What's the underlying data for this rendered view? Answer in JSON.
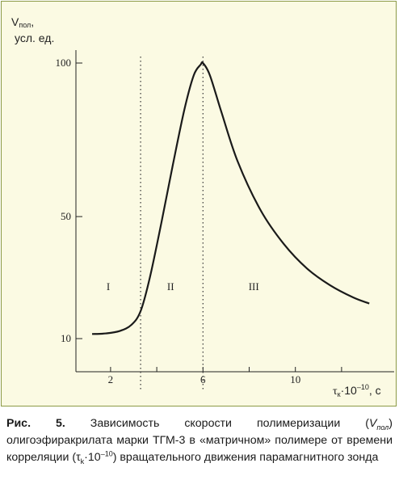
{
  "figure": {
    "y_axis_title_line1": "V",
    "y_axis_title_sub": "пол",
    "y_axis_title_comma": ",",
    "y_axis_title_line2": "усл. ед.",
    "x_axis_title_tau": "τ",
    "x_axis_title_sub": "к",
    "x_axis_title_base": "·10",
    "x_axis_title_exp": "–10",
    "x_axis_title_unit": ", с"
  },
  "caption": {
    "prefix": "Рис. 5.",
    "text1": " Зависимость скорости полимеризации (",
    "vsym": "V",
    "vsub": "пол",
    "text2": ") олигоэфиракрилата марки ТГМ-3 в «матричном» полимере от времени корреляции (",
    "tau": "τ",
    "tausub": "k",
    "text3": "·10",
    "text3exp": "–10",
    "text4": ") вращательного движения парамагнитного зонда"
  },
  "chart_data": {
    "type": "line",
    "xlim": [
      0.5,
      13.5
    ],
    "x_ticks": [
      2,
      6,
      10
    ],
    "x_minor_ticks": [
      4,
      8,
      12
    ],
    "y_ticks": [
      10,
      50,
      100
    ],
    "y_tick_labels": [
      "10",
      "50",
      "100"
    ],
    "y_scale": "non-linear (as drawn)",
    "region_boundaries_x": [
      3.3,
      6.0
    ],
    "region_labels": [
      "I",
      "II",
      "III"
    ],
    "region_label_x": [
      1.9,
      4.6,
      8.2
    ],
    "region_label_y": 27,
    "series": [
      {
        "x": [
          1.2,
          1.8,
          2.4,
          2.9,
          3.3,
          3.7,
          4.2,
          4.7,
          5.2,
          5.6,
          5.9,
          6.0,
          6.3,
          6.8,
          7.5,
          8.5,
          9.5,
          10.5,
          11.5,
          12.5,
          13.2
        ],
        "y": [
          11.5,
          11.7,
          12.5,
          14.5,
          19,
          30,
          48,
          67,
          85,
          96,
          99.5,
          100,
          96,
          84,
          68,
          52,
          41,
          33,
          27.5,
          23.5,
          21.5
        ]
      }
    ],
    "grid": false,
    "legend": "none"
  }
}
